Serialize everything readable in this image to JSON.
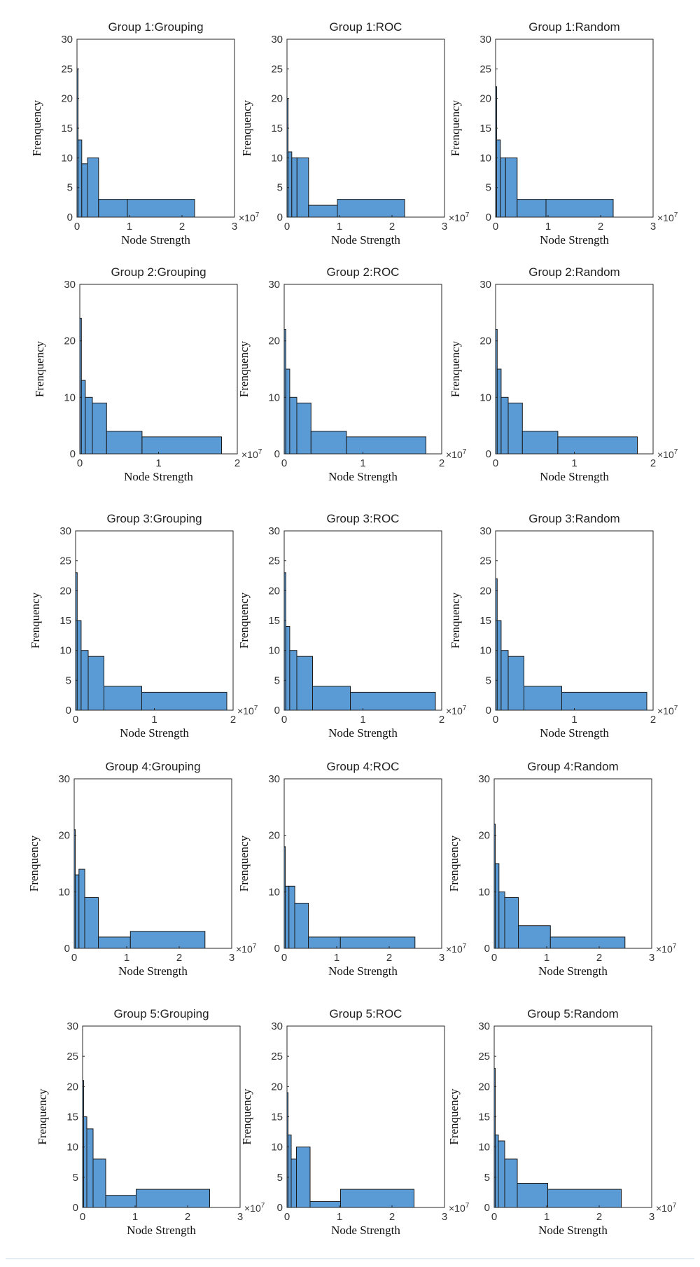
{
  "colors": {
    "bar": "#5b9bd5",
    "edge": "#1a1a1a",
    "frame": "#262626"
  },
  "chart_data": [
    {
      "type": "bar",
      "title": "Group 1:Grouping",
      "xlabel": "Node Strength",
      "ylabel": "Frenquency",
      "x_multiplier": "×10",
      "x_multiplier_exp": "7",
      "xlim": [
        0,
        3
      ],
      "xticks": [
        "0",
        "1",
        "2",
        "3"
      ],
      "ylim": [
        0,
        30
      ],
      "yticks": [
        "0",
        "5",
        "10",
        "15",
        "20",
        "25",
        "30"
      ],
      "bins": [
        {
          "x0": 0,
          "x1": 0.02,
          "value": 25
        },
        {
          "x0": 0.02,
          "x1": 0.09,
          "value": 13
        },
        {
          "x0": 0.09,
          "x1": 0.2,
          "value": 9
        },
        {
          "x0": 0.2,
          "x1": 0.41,
          "value": 10
        },
        {
          "x0": 0.41,
          "x1": 0.96,
          "value": 3
        },
        {
          "x0": 0.96,
          "x1": 2.24,
          "value": 3
        }
      ]
    },
    {
      "type": "bar",
      "title": "Group 1:ROC",
      "xlabel": "Node Strength",
      "ylabel": "Frenquency",
      "x_multiplier": "×10",
      "x_multiplier_exp": "7",
      "xlim": [
        0,
        3
      ],
      "xticks": [
        "0",
        "1",
        "2",
        "3"
      ],
      "ylim": [
        0,
        30
      ],
      "yticks": [
        "0",
        "5",
        "10",
        "15",
        "20",
        "25",
        "30"
      ],
      "bins": [
        {
          "x0": 0,
          "x1": 0.02,
          "value": 20
        },
        {
          "x0": 0.02,
          "x1": 0.09,
          "value": 11
        },
        {
          "x0": 0.09,
          "x1": 0.19,
          "value": 10
        },
        {
          "x0": 0.19,
          "x1": 0.41,
          "value": 10
        },
        {
          "x0": 0.41,
          "x1": 0.96,
          "value": 2
        },
        {
          "x0": 0.96,
          "x1": 2.24,
          "value": 3
        }
      ]
    },
    {
      "type": "bar",
      "title": "Group 1:Random",
      "xlabel": "Node Strength",
      "ylabel": "Frenquency",
      "x_multiplier": "×10",
      "x_multiplier_exp": "7",
      "xlim": [
        0,
        3
      ],
      "xticks": [
        "0",
        "1",
        "2",
        "3"
      ],
      "ylim": [
        0,
        30
      ],
      "yticks": [
        "0",
        "5",
        "10",
        "15",
        "20",
        "25",
        "30"
      ],
      "bins": [
        {
          "x0": 0,
          "x1": 0.02,
          "value": 22
        },
        {
          "x0": 0.02,
          "x1": 0.09,
          "value": 13
        },
        {
          "x0": 0.09,
          "x1": 0.19,
          "value": 10
        },
        {
          "x0": 0.19,
          "x1": 0.41,
          "value": 10
        },
        {
          "x0": 0.41,
          "x1": 0.96,
          "value": 3
        },
        {
          "x0": 0.96,
          "x1": 2.24,
          "value": 3
        }
      ]
    },
    {
      "type": "bar",
      "title": "Group 2:Grouping",
      "xlabel": "Node Strength",
      "ylabel": "Frenquency",
      "x_multiplier": "×10",
      "x_multiplier_exp": "7",
      "xlim": [
        0,
        2
      ],
      "xticks": [
        "0",
        "1",
        "2"
      ],
      "ylim": [
        0,
        30
      ],
      "yticks": [
        "0",
        "10",
        "20",
        "30"
      ],
      "bins": [
        {
          "x0": 0,
          "x1": 0.02,
          "value": 24
        },
        {
          "x0": 0.02,
          "x1": 0.07,
          "value": 13
        },
        {
          "x0": 0.07,
          "x1": 0.16,
          "value": 10
        },
        {
          "x0": 0.16,
          "x1": 0.34,
          "value": 9
        },
        {
          "x0": 0.34,
          "x1": 0.79,
          "value": 4
        },
        {
          "x0": 0.79,
          "x1": 1.8,
          "value": 3
        }
      ]
    },
    {
      "type": "bar",
      "title": "Group 2:ROC",
      "xlabel": "Node Strength",
      "ylabel": "Frenquency",
      "x_multiplier": "×10",
      "x_multiplier_exp": "7",
      "xlim": [
        0,
        2
      ],
      "xticks": [
        "0",
        "1",
        "2"
      ],
      "ylim": [
        0,
        30
      ],
      "yticks": [
        "0",
        "10",
        "20",
        "30"
      ],
      "bins": [
        {
          "x0": 0,
          "x1": 0.02,
          "value": 22
        },
        {
          "x0": 0.02,
          "x1": 0.07,
          "value": 15
        },
        {
          "x0": 0.07,
          "x1": 0.16,
          "value": 10
        },
        {
          "x0": 0.16,
          "x1": 0.34,
          "value": 9
        },
        {
          "x0": 0.34,
          "x1": 0.79,
          "value": 4
        },
        {
          "x0": 0.79,
          "x1": 1.8,
          "value": 3
        }
      ]
    },
    {
      "type": "bar",
      "title": "Group 2:Random",
      "xlabel": "Node Strength",
      "ylabel": "Frenquency",
      "x_multiplier": "×10",
      "x_multiplier_exp": "7",
      "xlim": [
        0,
        2
      ],
      "xticks": [
        "0",
        "1",
        "2"
      ],
      "ylim": [
        0,
        30
      ],
      "yticks": [
        "0",
        "10",
        "20",
        "30"
      ],
      "bins": [
        {
          "x0": 0,
          "x1": 0.02,
          "value": 22
        },
        {
          "x0": 0.02,
          "x1": 0.07,
          "value": 15
        },
        {
          "x0": 0.07,
          "x1": 0.16,
          "value": 10
        },
        {
          "x0": 0.16,
          "x1": 0.34,
          "value": 9
        },
        {
          "x0": 0.34,
          "x1": 0.79,
          "value": 4
        },
        {
          "x0": 0.79,
          "x1": 1.8,
          "value": 3
        }
      ]
    },
    {
      "type": "bar",
      "title": "Group 3:Grouping",
      "xlabel": "Node Strength",
      "ylabel": "Frenquency",
      "x_multiplier": "×10",
      "x_multiplier_exp": "7",
      "xlim": [
        0,
        2
      ],
      "xticks": [
        "0",
        "1",
        "2"
      ],
      "ylim": [
        0,
        30
      ],
      "yticks": [
        "0",
        "5",
        "10",
        "15",
        "20",
        "25",
        "30"
      ],
      "bins": [
        {
          "x0": 0,
          "x1": 0.02,
          "value": 23
        },
        {
          "x0": 0.02,
          "x1": 0.07,
          "value": 15
        },
        {
          "x0": 0.07,
          "x1": 0.16,
          "value": 10
        },
        {
          "x0": 0.16,
          "x1": 0.36,
          "value": 9
        },
        {
          "x0": 0.36,
          "x1": 0.84,
          "value": 4
        },
        {
          "x0": 0.84,
          "x1": 1.92,
          "value": 3
        }
      ]
    },
    {
      "type": "bar",
      "title": "Group 3:ROC",
      "xlabel": "Node Strength",
      "ylabel": "Frenquency",
      "x_multiplier": "×10",
      "x_multiplier_exp": "7",
      "xlim": [
        0,
        2
      ],
      "xticks": [
        "0",
        "1",
        "2"
      ],
      "ylim": [
        0,
        30
      ],
      "yticks": [
        "0",
        "5",
        "10",
        "15",
        "20",
        "25",
        "30"
      ],
      "bins": [
        {
          "x0": 0,
          "x1": 0.02,
          "value": 23
        },
        {
          "x0": 0.02,
          "x1": 0.07,
          "value": 14
        },
        {
          "x0": 0.07,
          "x1": 0.16,
          "value": 10
        },
        {
          "x0": 0.16,
          "x1": 0.36,
          "value": 9
        },
        {
          "x0": 0.36,
          "x1": 0.84,
          "value": 4
        },
        {
          "x0": 0.84,
          "x1": 1.92,
          "value": 3
        }
      ]
    },
    {
      "type": "bar",
      "title": "Group 3:Random",
      "xlabel": "Node Strength",
      "ylabel": "Frenquency",
      "x_multiplier": "×10",
      "x_multiplier_exp": "7",
      "xlim": [
        0,
        2
      ],
      "xticks": [
        "0",
        "1",
        "2"
      ],
      "ylim": [
        0,
        30
      ],
      "yticks": [
        "0",
        "5",
        "10",
        "15",
        "20",
        "25",
        "30"
      ],
      "bins": [
        {
          "x0": 0,
          "x1": 0.02,
          "value": 22
        },
        {
          "x0": 0.02,
          "x1": 0.07,
          "value": 15
        },
        {
          "x0": 0.07,
          "x1": 0.16,
          "value": 10
        },
        {
          "x0": 0.16,
          "x1": 0.36,
          "value": 9
        },
        {
          "x0": 0.36,
          "x1": 0.84,
          "value": 4
        },
        {
          "x0": 0.84,
          "x1": 1.92,
          "value": 3
        }
      ]
    },
    {
      "type": "bar",
      "title": "Group 4:Grouping",
      "xlabel": "Node Strength",
      "ylabel": "Frenquency",
      "x_multiplier": "×10",
      "x_multiplier_exp": "7",
      "xlim": [
        0,
        3
      ],
      "xticks": [
        "0",
        "1",
        "2",
        "3"
      ],
      "ylim": [
        0,
        30
      ],
      "yticks": [
        "0",
        "10",
        "20",
        "30"
      ],
      "bins": [
        {
          "x0": 0,
          "x1": 0.02,
          "value": 21
        },
        {
          "x0": 0.02,
          "x1": 0.09,
          "value": 13
        },
        {
          "x0": 0.09,
          "x1": 0.2,
          "value": 14
        },
        {
          "x0": 0.2,
          "x1": 0.46,
          "value": 9
        },
        {
          "x0": 0.46,
          "x1": 1.07,
          "value": 2
        },
        {
          "x0": 1.07,
          "x1": 2.49,
          "value": 3
        }
      ]
    },
    {
      "type": "bar",
      "title": "Group 4:ROC",
      "xlabel": "Node Strength",
      "ylabel": "Frenquency",
      "x_multiplier": "×10",
      "x_multiplier_exp": "7",
      "xlim": [
        0,
        3
      ],
      "xticks": [
        "0",
        "1",
        "2",
        "3"
      ],
      "ylim": [
        0,
        30
      ],
      "yticks": [
        "0",
        "10",
        "20",
        "30"
      ],
      "bins": [
        {
          "x0": 0,
          "x1": 0.02,
          "value": 18
        },
        {
          "x0": 0.02,
          "x1": 0.09,
          "value": 11
        },
        {
          "x0": 0.09,
          "x1": 0.2,
          "value": 11
        },
        {
          "x0": 0.2,
          "x1": 0.46,
          "value": 8
        },
        {
          "x0": 0.46,
          "x1": 1.07,
          "value": 2
        },
        {
          "x0": 1.07,
          "x1": 2.49,
          "value": 2
        }
      ]
    },
    {
      "type": "bar",
      "title": "Group 4:Random",
      "xlabel": "Node Strength",
      "ylabel": "Frenquency",
      "x_multiplier": "×10",
      "x_multiplier_exp": "7",
      "xlim": [
        0,
        3
      ],
      "xticks": [
        "0",
        "1",
        "2",
        "3"
      ],
      "ylim": [
        0,
        30
      ],
      "yticks": [
        "0",
        "10",
        "20",
        "30"
      ],
      "bins": [
        {
          "x0": 0,
          "x1": 0.02,
          "value": 22
        },
        {
          "x0": 0.02,
          "x1": 0.09,
          "value": 15
        },
        {
          "x0": 0.09,
          "x1": 0.2,
          "value": 10
        },
        {
          "x0": 0.2,
          "x1": 0.46,
          "value": 9
        },
        {
          "x0": 0.46,
          "x1": 1.07,
          "value": 4
        },
        {
          "x0": 1.07,
          "x1": 2.49,
          "value": 2
        }
      ]
    },
    {
      "type": "bar",
      "title": "Group 5:Grouping",
      "xlabel": "Node Strength",
      "ylabel": "Frenquency",
      "x_multiplier": "×10",
      "x_multiplier_exp": "7",
      "xlim": [
        0,
        3
      ],
      "xticks": [
        "0",
        "1",
        "2",
        "3"
      ],
      "ylim": [
        0,
        30
      ],
      "yticks": [
        "0",
        "5",
        "10",
        "15",
        "20",
        "25",
        "30"
      ],
      "bins": [
        {
          "x0": 0,
          "x1": 0.02,
          "value": 21
        },
        {
          "x0": 0.02,
          "x1": 0.08,
          "value": 15
        },
        {
          "x0": 0.08,
          "x1": 0.2,
          "value": 13
        },
        {
          "x0": 0.2,
          "x1": 0.44,
          "value": 8
        },
        {
          "x0": 0.44,
          "x1": 1.02,
          "value": 2
        },
        {
          "x0": 1.02,
          "x1": 2.42,
          "value": 3
        }
      ]
    },
    {
      "type": "bar",
      "title": "Group 5:ROC",
      "xlabel": "Node Strength",
      "ylabel": "Frenquency",
      "x_multiplier": "×10",
      "x_multiplier_exp": "7",
      "xlim": [
        0,
        3
      ],
      "xticks": [
        "0",
        "1",
        "2",
        "3"
      ],
      "ylim": [
        0,
        30
      ],
      "yticks": [
        "0",
        "5",
        "10",
        "15",
        "20",
        "25",
        "30"
      ],
      "bins": [
        {
          "x0": 0,
          "x1": 0.02,
          "value": 19
        },
        {
          "x0": 0.02,
          "x1": 0.08,
          "value": 12
        },
        {
          "x0": 0.08,
          "x1": 0.18,
          "value": 8
        },
        {
          "x0": 0.18,
          "x1": 0.44,
          "value": 10
        },
        {
          "x0": 0.44,
          "x1": 1.02,
          "value": 1
        },
        {
          "x0": 1.02,
          "x1": 2.42,
          "value": 3
        }
      ]
    },
    {
      "type": "bar",
      "title": "Group 5:Random",
      "xlabel": "Node Strength",
      "ylabel": "Frenquency",
      "x_multiplier": "×10",
      "x_multiplier_exp": "7",
      "xlim": [
        0,
        3
      ],
      "xticks": [
        "0",
        "1",
        "2",
        "3"
      ],
      "ylim": [
        0,
        30
      ],
      "yticks": [
        "0",
        "5",
        "10",
        "15",
        "20",
        "25",
        "30"
      ],
      "bins": [
        {
          "x0": 0,
          "x1": 0.02,
          "value": 23
        },
        {
          "x0": 0.02,
          "x1": 0.08,
          "value": 12
        },
        {
          "x0": 0.08,
          "x1": 0.2,
          "value": 11
        },
        {
          "x0": 0.2,
          "x1": 0.44,
          "value": 8
        },
        {
          "x0": 0.44,
          "x1": 1.02,
          "value": 4
        },
        {
          "x0": 1.02,
          "x1": 2.42,
          "value": 3
        }
      ]
    }
  ]
}
